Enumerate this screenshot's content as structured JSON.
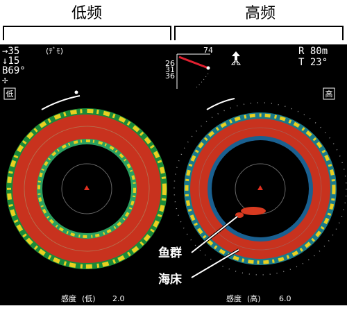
{
  "header": {
    "left": "低频",
    "right": "高频"
  },
  "status": {
    "range_left": "→35",
    "mode": "(ﾃﾞﾓ)",
    "depth": "↓15",
    "bearing": "B69°",
    "cursor": "✢",
    "range_right": "R 80m",
    "temp": "T 23°"
  },
  "gauge": {
    "max": "74",
    "labels": [
      "26",
      "31",
      "36"
    ]
  },
  "panels": [
    {
      "tag": "低",
      "sensitivity": [
        "感度",
        "(低)",
        "2.0"
      ]
    },
    {
      "tag": "高",
      "sensitivity": [
        "感度",
        "(高)",
        "6.0"
      ]
    }
  ],
  "annotations": {
    "fish": "鱼群",
    "seabed": "海床"
  }
}
